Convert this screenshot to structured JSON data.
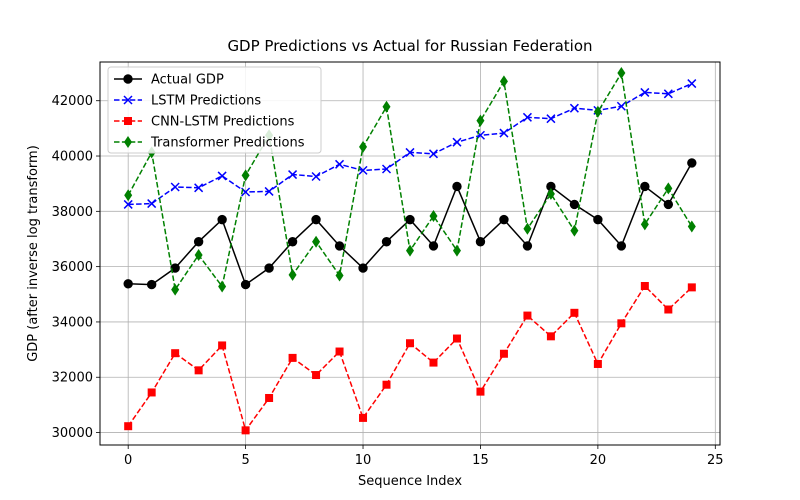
{
  "chart_data": {
    "type": "line",
    "title": "GDP Predictions vs Actual for Russian Federation",
    "xlabel": "Sequence Index",
    "ylabel": "GDP (after inverse log transform)",
    "xlim": [
      -1.2,
      25.2
    ],
    "ylim": [
      29550,
      43400
    ],
    "xticks": [
      0,
      5,
      10,
      15,
      20,
      25
    ],
    "yticks": [
      30000,
      32000,
      34000,
      36000,
      38000,
      40000,
      42000
    ],
    "grid": true,
    "legend_position": "top-left",
    "x": [
      0,
      1,
      2,
      3,
      4,
      5,
      6,
      7,
      8,
      9,
      10,
      11,
      12,
      13,
      14,
      15,
      16,
      17,
      18,
      19,
      20,
      21,
      22,
      23,
      24
    ],
    "series": [
      {
        "name": "Actual GDP",
        "color": "#000000",
        "marker": "circle",
        "dash": "solid",
        "values": [
          35380,
          35350,
          35950,
          36900,
          37700,
          35350,
          35950,
          36900,
          37700,
          36750,
          35950,
          36900,
          37700,
          36750,
          38900,
          36900,
          37700,
          36750,
          38900,
          38250,
          37700,
          36750,
          38900,
          38250,
          39750
        ]
      },
      {
        "name": "LSTM Predictions",
        "color": "#0000ff",
        "marker": "x",
        "dash": "dashed",
        "values": [
          38250,
          38280,
          38880,
          38850,
          39280,
          38700,
          38720,
          39330,
          39260,
          39700,
          39480,
          39530,
          40130,
          40080,
          40500,
          40750,
          40830,
          41400,
          41350,
          41730,
          41650,
          41800,
          42300,
          42250,
          42620
        ]
      },
      {
        "name": "CNN-LSTM Predictions",
        "color": "#ff0000",
        "marker": "square",
        "dash": "dashed",
        "values": [
          30230,
          31450,
          32870,
          32250,
          33150,
          30080,
          31250,
          32700,
          32080,
          32930,
          30530,
          31730,
          33230,
          32530,
          33400,
          31480,
          32850,
          34230,
          33480,
          34330,
          32480,
          33950,
          35300,
          34450,
          35250
        ]
      },
      {
        "name": "Transformer Predictions",
        "color": "#008000",
        "marker": "diamond",
        "dash": "dashed",
        "values": [
          38580,
          40130,
          35170,
          36420,
          35280,
          39300,
          40750,
          35700,
          36900,
          35680,
          40330,
          41780,
          36580,
          37830,
          36580,
          41280,
          42700,
          37370,
          38630,
          37300,
          41600,
          43000,
          37530,
          38830,
          37450
        ]
      }
    ]
  }
}
